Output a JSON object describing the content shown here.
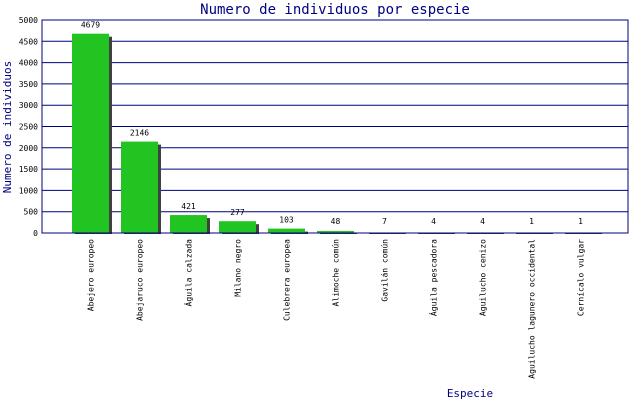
{
  "chart_data": {
    "type": "bar",
    "title": "Numero de individuos por especie",
    "xlabel": "Especie",
    "ylabel": "Numero de individuos",
    "ylim": [
      0,
      5000
    ],
    "yticks": [
      0,
      500,
      1000,
      1500,
      2000,
      2500,
      3000,
      3500,
      4000,
      4500,
      5000
    ],
    "grid": true,
    "categories": [
      "Abejero europeo",
      "Abejaruco europeo",
      "Águila calzada",
      "Milano negro",
      "Culebrera europea",
      "Alimoche común",
      "Gavilán común",
      "Águila pescadora",
      "Aguilucho cenizo",
      "Aguilucho lagunero occidental",
      "Cernícalo vulgar"
    ],
    "values": [
      4679,
      2146,
      421,
      277,
      103,
      48,
      7,
      4,
      4,
      1,
      1
    ],
    "colors": {
      "bar": "#22c422",
      "shadow": "#404040",
      "grid": "#000080",
      "title": "#000080"
    }
  }
}
